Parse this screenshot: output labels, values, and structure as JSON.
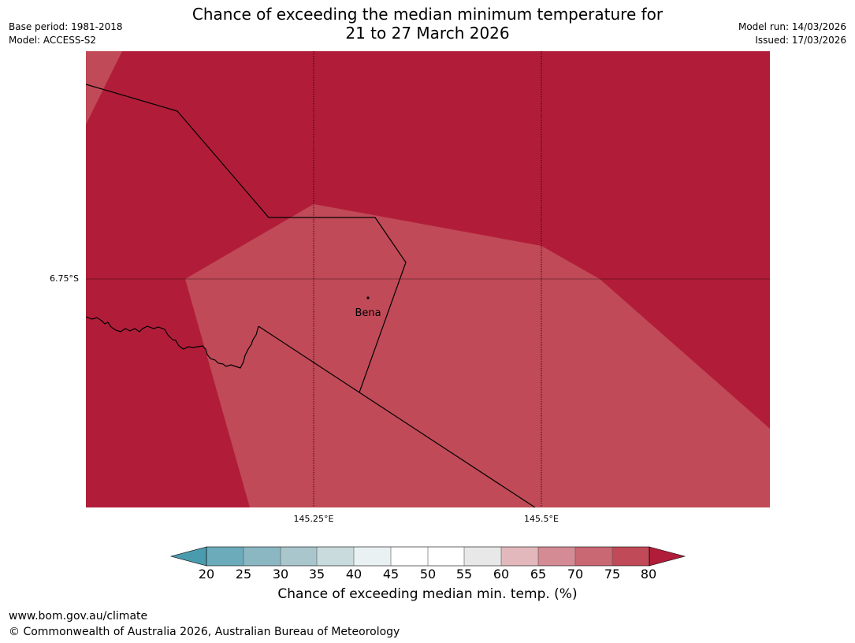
{
  "header": {
    "title_line1": "Chance of exceeding the median minimum temperature for",
    "title_line2": "21 to 27 March 2026",
    "base_period": "Base period: 1981-2018",
    "model": "Model: ACCESS-S2",
    "model_run": "Model run: 14/03/2026",
    "issued": "Issued: 17/03/2026"
  },
  "map": {
    "latitude_label": "6.75°S",
    "longitude_labels": [
      "145.25°E",
      "145.5°E"
    ],
    "place_name": "Bena",
    "colors": {
      "band_75_80": "#c04a57",
      "band_above_80": "#b11d39",
      "boundary": "#000000"
    }
  },
  "legend": {
    "ticks": [
      "20",
      "25",
      "30",
      "35",
      "40",
      "45",
      "50",
      "55",
      "60",
      "65",
      "70",
      "75",
      "80"
    ],
    "colors": [
      "#4a9bad",
      "#6babba",
      "#8bb7c3",
      "#a9c6cc",
      "#c9dbdd",
      "#eaf1f2",
      "#ffffff",
      "#ffffff",
      "#e8e8e8",
      "#e2b8bd",
      "#d48b94",
      "#c96872",
      "#c04a57",
      "#b11d39"
    ],
    "label": "Chance of exceeding median min. temp. (%)"
  },
  "footer": {
    "website": "www.bom.gov.au/climate",
    "copyright": "© Commonwealth of Australia 2026, Australian Bureau of Meteorology"
  }
}
